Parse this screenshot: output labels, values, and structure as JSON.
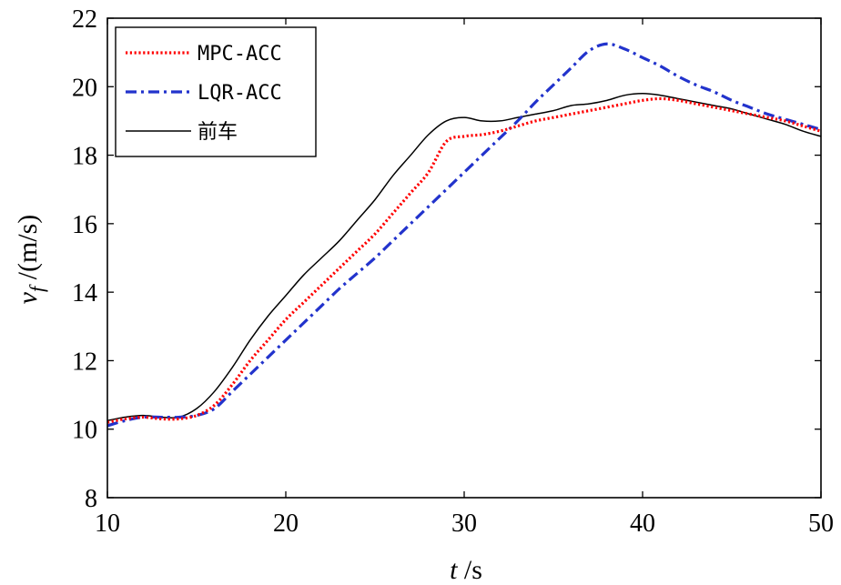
{
  "chart_data": {
    "type": "line",
    "title": "",
    "xlabel": {
      "var": "t",
      "unit": " /s"
    },
    "ylabel": {
      "var": "v",
      "sub": "f",
      "unit": " /(m/s)"
    },
    "xlim": [
      10,
      50
    ],
    "ylim": [
      8,
      22
    ],
    "xticks": [
      10,
      20,
      30,
      40,
      50
    ],
    "yticks": [
      8,
      10,
      12,
      14,
      16,
      18,
      20,
      22
    ],
    "legend_position": "top-left",
    "series": [
      {
        "name": "MPC-ACC",
        "color": "#ff0000",
        "style": "dotted",
        "x": [
          10,
          11,
          12,
          13,
          14,
          15,
          16,
          17,
          18,
          19,
          20,
          21,
          22,
          23,
          24,
          25,
          26,
          27,
          28,
          29,
          30,
          31,
          32,
          33,
          34,
          35,
          36,
          37,
          38,
          39,
          40,
          41,
          42,
          43,
          44,
          45,
          46,
          47,
          48,
          49,
          50
        ],
        "y": [
          10.2,
          10.3,
          10.35,
          10.3,
          10.3,
          10.4,
          10.7,
          11.3,
          12.0,
          12.6,
          13.2,
          13.7,
          14.2,
          14.7,
          15.2,
          15.7,
          16.3,
          16.9,
          17.5,
          18.4,
          18.55,
          18.6,
          18.7,
          18.85,
          19.0,
          19.1,
          19.2,
          19.3,
          19.4,
          19.5,
          19.6,
          19.65,
          19.6,
          19.5,
          19.4,
          19.3,
          19.2,
          19.1,
          19.0,
          18.85,
          18.7
        ]
      },
      {
        "name": "LQR-ACC",
        "color": "#2233cc",
        "style": "dashdot",
        "x": [
          10,
          11,
          12,
          13,
          14,
          15,
          16,
          17,
          18,
          19,
          20,
          21,
          22,
          23,
          24,
          25,
          26,
          27,
          28,
          29,
          30,
          31,
          32,
          33,
          34,
          35,
          36,
          37,
          38,
          39,
          40,
          41,
          42,
          43,
          44,
          45,
          46,
          47,
          48,
          49,
          50
        ],
        "y": [
          10.1,
          10.25,
          10.35,
          10.35,
          10.35,
          10.4,
          10.6,
          11.1,
          11.6,
          12.1,
          12.6,
          13.1,
          13.6,
          14.1,
          14.55,
          15.0,
          15.5,
          16.0,
          16.5,
          17.0,
          17.5,
          18.0,
          18.5,
          19.0,
          19.55,
          20.05,
          20.55,
          21.05,
          21.25,
          21.1,
          20.85,
          20.6,
          20.3,
          20.05,
          19.85,
          19.6,
          19.4,
          19.2,
          19.05,
          18.9,
          18.75
        ]
      },
      {
        "name": "前车",
        "color": "#000000",
        "style": "solid",
        "x": [
          10,
          11,
          12,
          13,
          14,
          15,
          16,
          17,
          18,
          19,
          20,
          21,
          22,
          23,
          24,
          25,
          26,
          27,
          28,
          29,
          30,
          31,
          32,
          33,
          34,
          35,
          36,
          37,
          38,
          39,
          40,
          41,
          42,
          43,
          44,
          45,
          46,
          47,
          48,
          49,
          50
        ],
        "y": [
          10.25,
          10.35,
          10.4,
          10.35,
          10.35,
          10.6,
          11.1,
          11.8,
          12.6,
          13.3,
          13.9,
          14.5,
          15.0,
          15.5,
          16.1,
          16.7,
          17.4,
          18.0,
          18.6,
          19.0,
          19.1,
          19.0,
          19.0,
          19.1,
          19.2,
          19.3,
          19.45,
          19.5,
          19.6,
          19.75,
          19.8,
          19.75,
          19.65,
          19.55,
          19.45,
          19.35,
          19.2,
          19.05,
          18.9,
          18.7,
          18.55
        ]
      }
    ]
  }
}
